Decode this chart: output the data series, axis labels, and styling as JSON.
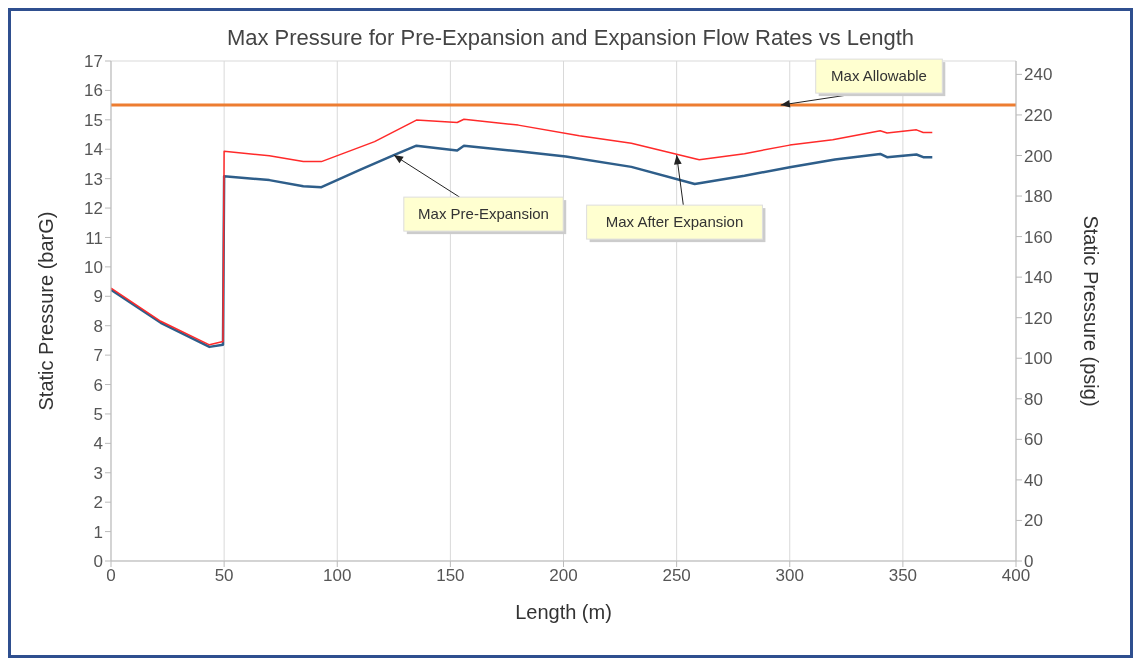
{
  "chart_data": {
    "type": "line",
    "title": "Max Pressure for Pre-Expansion and Expansion Flow Rates vs Length",
    "xlabel": "Length (m)",
    "ylabel": "Static Pressure (barG)",
    "y2label": "Static Pressure (psig)",
    "xlim": [
      0,
      400
    ],
    "xticks": [
      0,
      50,
      100,
      150,
      200,
      250,
      300,
      350,
      400
    ],
    "ylim": [
      0,
      17
    ],
    "yticks": [
      0,
      1,
      2,
      3,
      4,
      5,
      6,
      7,
      8,
      9,
      10,
      11,
      12,
      13,
      14,
      15,
      16,
      17
    ],
    "y2lim": [
      0,
      246.6
    ],
    "y2ticks": [
      0,
      20,
      40,
      60,
      80,
      100,
      120,
      140,
      160,
      180,
      200,
      220,
      240
    ],
    "grid": true,
    "marker": "none",
    "line_style": "solid",
    "series": [
      {
        "color": "#2e5e8a",
        "x": [
          0,
          22,
          43.5,
          49.5,
          50,
          70,
          85,
          93,
          110,
          125,
          135,
          153,
          156,
          180,
          201,
          230,
          258,
          280,
          300,
          320,
          340,
          343,
          356,
          359,
          363
        ],
        "values": [
          9.22,
          8.1,
          7.28,
          7.35,
          13.08,
          12.95,
          12.74,
          12.71,
          13.3,
          13.8,
          14.12,
          13.96,
          14.12,
          13.93,
          13.75,
          13.4,
          12.82,
          13.1,
          13.39,
          13.65,
          13.84,
          13.73,
          13.82,
          13.73,
          13.73
        ]
      },
      {
        "color": "#ff2a2a",
        "x": [
          0,
          22,
          43.5,
          49.5,
          50,
          70,
          85,
          93,
          116.5,
          135,
          153,
          156,
          180,
          207,
          230,
          260,
          280,
          300,
          319,
          340,
          343,
          356,
          359,
          363
        ],
        "values": [
          9.28,
          8.15,
          7.35,
          7.46,
          13.93,
          13.78,
          13.58,
          13.58,
          14.26,
          14.99,
          14.91,
          15.02,
          14.82,
          14.46,
          14.2,
          13.64,
          13.85,
          14.14,
          14.32,
          14.63,
          14.55,
          14.66,
          14.57,
          14.57
        ]
      }
    ],
    "ref_lines": [
      {
        "axis": "y",
        "value": 15.5,
        "label": "Max Allowable",
        "color": "#ed7d31"
      }
    ],
    "annotations": [
      {
        "text": "Max Pre-Expansion",
        "x": 125,
        "y": 13.8
      },
      {
        "text": "Max After Expansion",
        "x": 250,
        "y": 13.8
      }
    ]
  }
}
